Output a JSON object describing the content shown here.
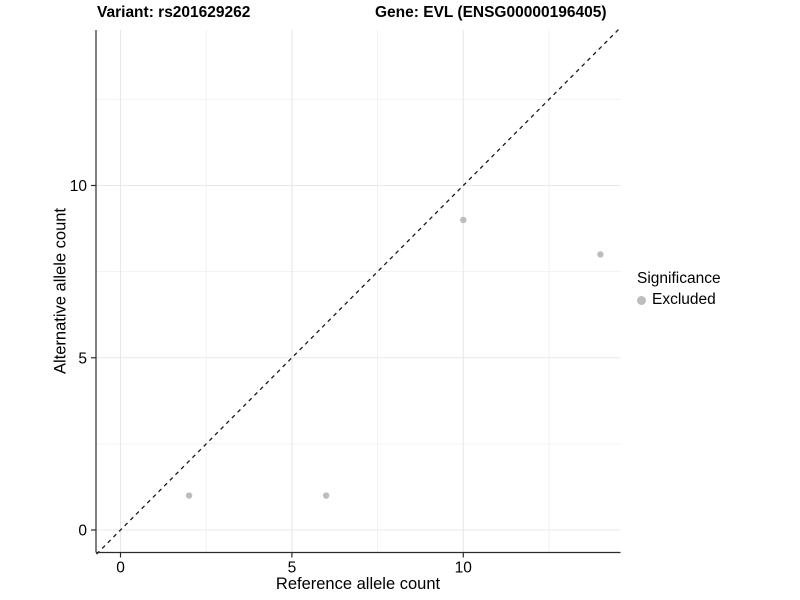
{
  "title": {
    "variant": "Variant: rs201629262",
    "gene": "Gene: EVL (ENSG00000196405)"
  },
  "chart_data": {
    "type": "scatter",
    "title": "Variant: rs201629262   Gene: EVL (ENSG00000196405)",
    "xlabel": "Reference allele count",
    "ylabel": "Alternative allele count",
    "xlim": [
      -0.7,
      14.6
    ],
    "ylim": [
      -0.65,
      14.55
    ],
    "x_ticks": [
      0,
      5,
      10
    ],
    "y_ticks": [
      0,
      5,
      10
    ],
    "x_minor_ticks": [
      2.5,
      7.5,
      12.5
    ],
    "y_minor_ticks": [
      2.5,
      7.5,
      12.5
    ],
    "grid": true,
    "identity_line": {
      "style": "dashed",
      "from": [
        -0.7,
        -0.7
      ],
      "to": [
        14.6,
        14.6
      ],
      "color": "#1a1a1a"
    },
    "series": [
      {
        "name": "Excluded",
        "color": "#bdbdbd",
        "points": [
          {
            "x": 2,
            "y": 1
          },
          {
            "x": 6,
            "y": 1
          },
          {
            "x": 10,
            "y": 9
          },
          {
            "x": 14,
            "y": 8
          }
        ]
      }
    ],
    "legend": {
      "title": "Significance",
      "position": "right",
      "items": [
        {
          "label": "Excluded",
          "color": "#bdbdbd"
        }
      ]
    },
    "colors": {
      "grid_major": "#e8e8e8",
      "grid_minor": "#efefef",
      "axis_line": "#2b2b2b",
      "tick_mark": "#2b2b2b",
      "tick_label": "#000000"
    }
  }
}
